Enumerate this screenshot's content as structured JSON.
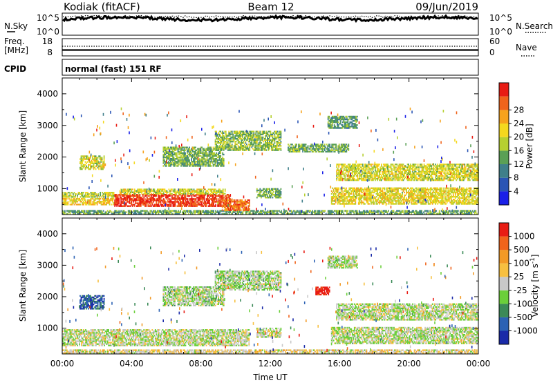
{
  "header": {
    "radar": "Kodiak (fitACF)",
    "beam": "Beam 12",
    "date": "09/Jun/2019"
  },
  "nsky_panel": {
    "left_label": "N.Sky",
    "right_label": "N.Search",
    "left_ticks": [
      "10^5",
      "10^0"
    ],
    "right_ticks": [
      "10^5",
      "10^0"
    ]
  },
  "freq_panel": {
    "left_label_1": "Freq.",
    "left_label_2": "[MHz]",
    "left_ticks": [
      "18",
      "8"
    ],
    "right_ticks": [
      "60",
      "0"
    ],
    "right_label": "Nave"
  },
  "cpid_panel": {
    "label": "CPID",
    "text": "normal (fast) 151 RF"
  },
  "x_axis": {
    "label": "Time UT",
    "ticks": [
      "00:00",
      "04:00",
      "08:00",
      "12:00",
      "16:00",
      "20:00",
      "00:00"
    ]
  },
  "chart_data": [
    {
      "type": "heatmap",
      "name": "power",
      "ylabel": "Slant Range [km]",
      "xlabel": "",
      "y_ticks": [
        1000,
        2000,
        3000,
        4000
      ],
      "ylim": [
        180,
        4500
      ],
      "xlim_hours": [
        0,
        24
      ],
      "colorbar": {
        "label": "Power [dB]",
        "ticks": [
          "4",
          "8",
          "12",
          "16",
          "20",
          "24",
          "28"
        ],
        "colors": [
          "#1a20e8",
          "#2a55b5",
          "#3f7f8a",
          "#5aa055",
          "#b6d030",
          "#f4d81e",
          "#f6a21c",
          "#f0641b",
          "#e81c14"
        ]
      },
      "echo_regions": [
        {
          "t0": 0.0,
          "t1": 23.9,
          "r0": 190,
          "r1": 290,
          "level": 0.38
        },
        {
          "t0": 0.0,
          "t1": 3.0,
          "r0": 480,
          "r1": 700,
          "level": 0.62
        },
        {
          "t0": 0.0,
          "t1": 3.0,
          "r0": 720,
          "r1": 900,
          "level": 0.5
        },
        {
          "t0": 3.0,
          "t1": 9.7,
          "r0": 430,
          "r1": 820,
          "level": 0.92
        },
        {
          "t0": 3.3,
          "t1": 9.4,
          "r0": 820,
          "r1": 960,
          "level": 0.55
        },
        {
          "t0": 9.2,
          "t1": 10.8,
          "r0": 300,
          "r1": 620,
          "level": 0.8
        },
        {
          "t0": 1.0,
          "t1": 2.4,
          "r0": 1600,
          "r1": 2050,
          "level": 0.55
        },
        {
          "t0": 5.8,
          "t1": 9.3,
          "r0": 1700,
          "r1": 2300,
          "level": 0.42
        },
        {
          "t0": 8.8,
          "t1": 12.6,
          "r0": 2200,
          "r1": 2800,
          "level": 0.45
        },
        {
          "t0": 13.0,
          "t1": 16.5,
          "r0": 2150,
          "r1": 2400,
          "level": 0.4
        },
        {
          "t0": 15.8,
          "t1": 24.0,
          "r0": 1250,
          "r1": 1750,
          "level": 0.55
        },
        {
          "t0": 15.5,
          "t1": 24.0,
          "r0": 500,
          "r1": 1000,
          "level": 0.58
        },
        {
          "t0": 11.2,
          "t1": 12.6,
          "r0": 700,
          "r1": 1000,
          "level": 0.4
        },
        {
          "t0": 15.3,
          "t1": 17.0,
          "r0": 2900,
          "r1": 3300,
          "level": 0.35
        }
      ]
    },
    {
      "type": "heatmap",
      "name": "velocity",
      "ylabel": "Slant Range [km]",
      "xlabel": "Time UT",
      "y_ticks": [
        1000,
        2000,
        3000,
        4000
      ],
      "ylim": [
        180,
        4500
      ],
      "xlim_hours": [
        0,
        24
      ],
      "colorbar": {
        "label": "Velocity [m s^-1]",
        "ticks": [
          "1000",
          "500",
          "100",
          "25",
          "-25",
          "-100",
          "-500",
          "-1000"
        ],
        "colors": [
          "#1a2aa8",
          "#2c62b4",
          "#3c8a58",
          "#6bcf3a",
          "#c8c8c8",
          "#f7c040",
          "#f29a26",
          "#f0641b",
          "#e81c14"
        ]
      },
      "echo_regions": [
        {
          "t0": 0.0,
          "t1": 23.9,
          "r0": 190,
          "r1": 290,
          "level": 0.55
        },
        {
          "t0": 0.0,
          "t1": 10.8,
          "r0": 430,
          "r1": 960,
          "level": 0.48
        },
        {
          "t0": 1.0,
          "t1": 2.4,
          "r0": 1600,
          "r1": 2050,
          "level": 0.15
        },
        {
          "t0": 5.8,
          "t1": 9.3,
          "r0": 1700,
          "r1": 2300,
          "level": 0.45
        },
        {
          "t0": 8.8,
          "t1": 12.6,
          "r0": 2200,
          "r1": 2800,
          "level": 0.45
        },
        {
          "t0": 14.6,
          "t1": 15.4,
          "r0": 2050,
          "r1": 2300,
          "level": 0.98
        },
        {
          "t0": 15.8,
          "t1": 24.0,
          "r0": 1250,
          "r1": 1750,
          "level": 0.47
        },
        {
          "t0": 15.5,
          "t1": 24.0,
          "r0": 500,
          "r1": 1000,
          "level": 0.47
        },
        {
          "t0": 11.2,
          "t1": 12.6,
          "r0": 700,
          "r1": 1000,
          "level": 0.5
        },
        {
          "t0": 15.3,
          "t1": 17.0,
          "r0": 2900,
          "r1": 3300,
          "level": 0.47
        }
      ]
    }
  ]
}
